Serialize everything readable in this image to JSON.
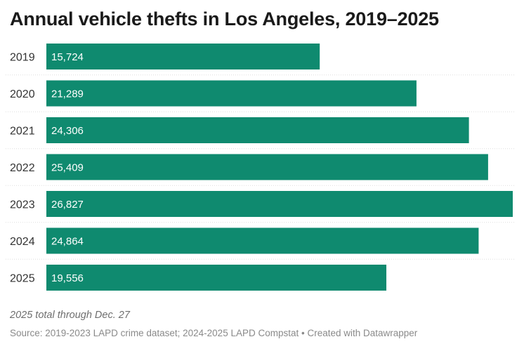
{
  "chart_data": {
    "type": "bar",
    "orientation": "horizontal",
    "title": "Annual vehicle thefts in Los Angeles, 2019–2025",
    "categories": [
      "2019",
      "2020",
      "2021",
      "2022",
      "2023",
      "2024",
      "2025"
    ],
    "values": [
      15724,
      21289,
      24306,
      25409,
      26827,
      24864,
      19556
    ],
    "value_labels": [
      "15,724",
      "21,289",
      "24,306",
      "25,409",
      "26,827",
      "24,864",
      "19,556"
    ],
    "xlabel": "",
    "ylabel": "",
    "xlim": [
      0,
      26827
    ],
    "bar_color": "#0f8a6f",
    "gridline_color": "#dddddd",
    "note": "2025 total through Dec. 27",
    "source": "Source: 2019-2023 LAPD crime dataset; 2024-2025 LAPD Compstat • Created with Datawrapper"
  }
}
